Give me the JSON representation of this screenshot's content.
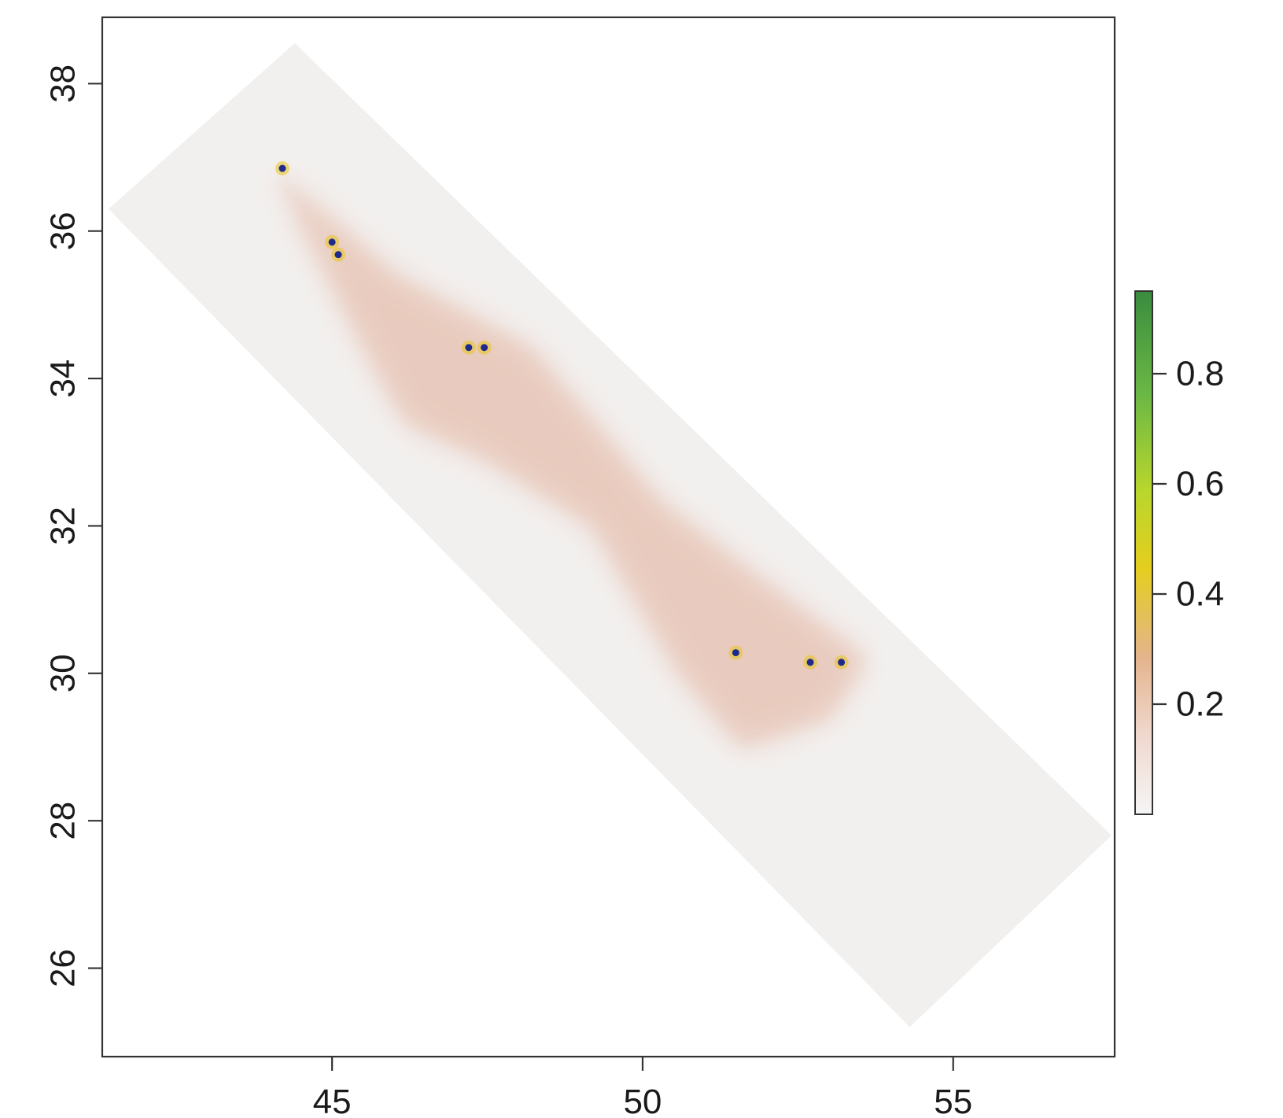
{
  "chart_data": {
    "type": "heatmap",
    "x_axis": {
      "range": [
        41.3,
        57.6
      ],
      "ticks": [
        45,
        50,
        55
      ],
      "tick_labels": [
        "45",
        "50",
        "55"
      ]
    },
    "y_axis": {
      "range": [
        24.8,
        38.9
      ],
      "ticks": [
        26,
        28,
        30,
        32,
        34,
        36,
        38
      ],
      "tick_labels": [
        "26",
        "28",
        "30",
        "32",
        "34",
        "36",
        "38"
      ]
    },
    "legend": {
      "placement": "right",
      "range": [
        0.0,
        0.95
      ],
      "ticks": [
        0.2,
        0.4,
        0.6,
        0.8
      ],
      "tick_labels": [
        "0.2",
        "0.4",
        "0.6",
        "0.8"
      ],
      "gradient_colors": [
        "#f5f5f5",
        "#f0d8cf",
        "#e4b48c",
        "#e5ce1e",
        "#b8d62d",
        "#6cb845",
        "#3a8c3f"
      ]
    },
    "domain_polygon": [
      [
        41.4,
        36.3
      ],
      [
        44.4,
        38.55
      ],
      [
        57.55,
        27.8
      ],
      [
        54.3,
        25.2
      ]
    ],
    "high_region_polygon": [
      [
        44.1,
        36.8
      ],
      [
        46.0,
        35.4
      ],
      [
        48.2,
        34.4
      ],
      [
        50.3,
        32.3
      ],
      [
        52.0,
        31.2
      ],
      [
        53.6,
        30.2
      ],
      [
        53.0,
        29.4
      ],
      [
        51.6,
        29.0
      ],
      [
        50.6,
        30.0
      ],
      [
        49.2,
        32.0
      ],
      [
        47.5,
        32.9
      ],
      [
        46.2,
        33.4
      ],
      [
        45.6,
        34.3
      ],
      [
        44.2,
        36.6
      ]
    ],
    "points": [
      {
        "lon": 44.2,
        "lat": 36.85
      },
      {
        "lon": 45.0,
        "lat": 35.85
      },
      {
        "lon": 45.1,
        "lat": 35.68
      },
      {
        "lon": 47.2,
        "lat": 34.42
      },
      {
        "lon": 47.45,
        "lat": 34.42
      },
      {
        "lon": 51.5,
        "lat": 30.28
      },
      {
        "lon": 52.7,
        "lat": 30.15
      },
      {
        "lon": 53.2,
        "lat": 30.15
      }
    ],
    "point_color": "#1f2a8c",
    "point_halo_color": "#e8c41e"
  }
}
